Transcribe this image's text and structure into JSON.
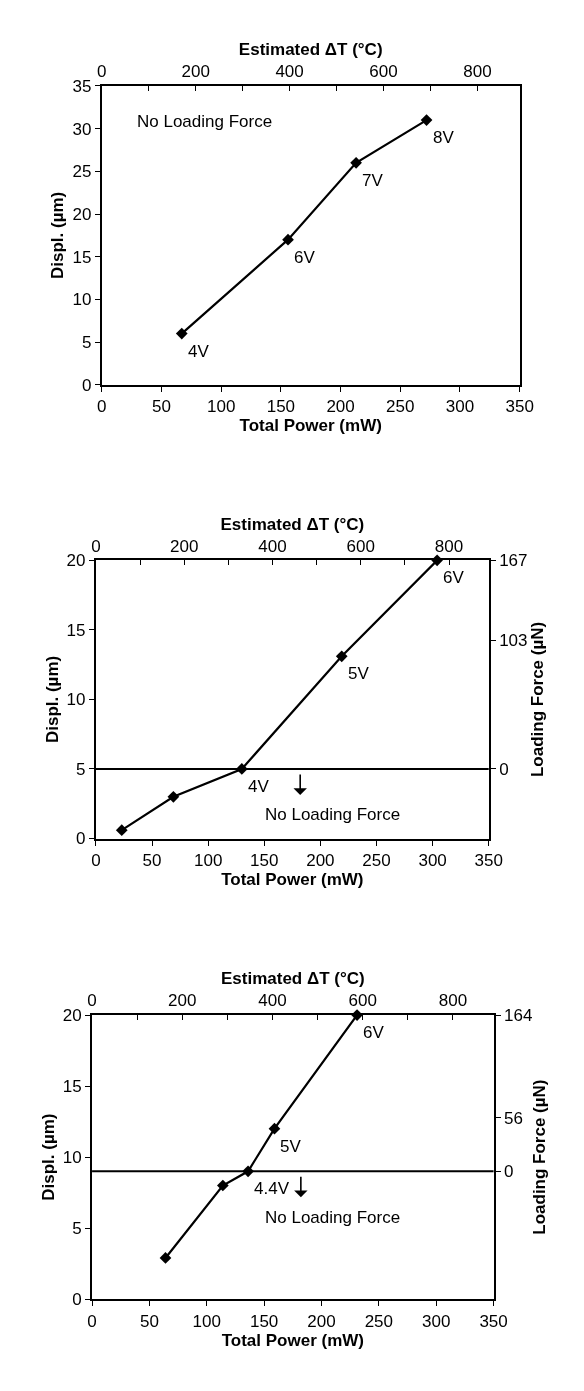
{
  "chart_data": [
    {
      "type": "line",
      "xlabel": "Total Power (mW)",
      "x2label": "Estimated ΔT (°C)",
      "ylabel": "Displ. (µm)",
      "x": [
        67,
        156,
        213,
        272
      ],
      "series": [
        {
          "color": "#000000",
          "values": [
            6,
            17,
            26,
            31
          ]
        }
      ],
      "marker": "diamond",
      "line_style": "solid",
      "xlim": [
        0,
        350
      ],
      "xticks": [
        0,
        50,
        100,
        150,
        200,
        250,
        300,
        350
      ],
      "x2lim": [
        0,
        890
      ],
      "x2ticks": [
        0,
        {
          "value": 100,
          "label": null
        },
        200,
        {
          "value": 300,
          "label": null
        },
        400,
        {
          "value": 500,
          "label": null
        },
        600,
        {
          "value": 700,
          "label": null
        },
        800
      ],
      "ylim": [
        0,
        35
      ],
      "yticks": [
        0,
        5,
        10,
        15,
        20,
        25,
        30,
        35
      ],
      "annotations": [
        "No Loading Force",
        {
          "text": "4V",
          "x": 67,
          "y": 6
        },
        {
          "text": "6V",
          "x": 156,
          "y": 17
        },
        {
          "text": "7V",
          "x": 213,
          "y": 26
        },
        {
          "text": "8V",
          "x": 272,
          "y": 31
        }
      ]
    },
    {
      "type": "line",
      "xlabel": "Total Power (mW)",
      "x2label": "Estimated ΔT (°C)",
      "ylabel": "Displ. (µm)",
      "y2label": "Loading Force (µN)",
      "x": [
        23,
        69,
        130,
        219,
        304
      ],
      "series": [
        {
          "color": "#000000",
          "values": [
            0.6,
            3,
            5,
            13.1,
            20
          ]
        }
      ],
      "marker": "diamond",
      "line_style": "solid",
      "xlim": [
        0,
        350
      ],
      "xticks": [
        0,
        50,
        100,
        150,
        200,
        250,
        300,
        350
      ],
      "x2lim": [
        0,
        890
      ],
      "x2ticks": [
        0,
        {
          "value": 100,
          "label": null
        },
        200,
        {
          "value": 300,
          "label": null
        },
        400,
        {
          "value": 500,
          "label": null
        },
        600,
        {
          "value": 700,
          "label": null
        },
        800
      ],
      "ylim": [
        0,
        20
      ],
      "yticks": [
        0,
        5,
        10,
        15,
        20
      ],
      "y2lim": [
        -55.7,
        167
      ],
      "y2ticks": [
        0,
        103,
        167
      ],
      "ref_lines": [
        {
          "axis": "y",
          "value": 5,
          "label": "No Loading Force",
          "color": "#000000"
        }
      ],
      "annotations": [
        {
          "text": "4V",
          "x": 130,
          "y": 5
        },
        {
          "text": "5V",
          "x": 219,
          "y": 13.1
        },
        {
          "text": "6V",
          "x": 304,
          "y": 20
        }
      ]
    },
    {
      "type": "line",
      "xlabel": "Total Power (mW)",
      "x2label": "Estimated ΔT (°C)",
      "ylabel": "Displ. (µm)",
      "y2label": "Loading Force (µN)",
      "x": [
        64,
        114,
        136,
        159,
        231
      ],
      "series": [
        {
          "color": "#000000",
          "values": [
            2.9,
            8,
            9,
            12,
            20
          ]
        }
      ],
      "marker": "diamond",
      "line_style": "solid",
      "xlim": [
        0,
        350
      ],
      "xticks": [
        0,
        50,
        100,
        150,
        200,
        250,
        300,
        350
      ],
      "x2lim": [
        0,
        890
      ],
      "x2ticks": [
        0,
        {
          "value": 100,
          "label": null
        },
        200,
        {
          "value": 300,
          "label": null
        },
        400,
        {
          "value": 500,
          "label": null
        },
        600,
        {
          "value": 700,
          "label": null
        },
        800
      ],
      "ylim": [
        0,
        20
      ],
      "yticks": [
        0,
        5,
        10,
        15,
        20
      ],
      "y2lim": [
        -134.2,
        164
      ],
      "y2ticks": [
        0,
        56,
        164
      ],
      "ref_lines": [
        {
          "axis": "y",
          "value": 9,
          "label": "No Loading Force",
          "color": "#000000"
        }
      ],
      "annotations": [
        {
          "text": "4.4V",
          "x": 136,
          "y": 9
        },
        {
          "text": "5V",
          "x": 159,
          "y": 12
        },
        {
          "text": "6V",
          "x": 231,
          "y": 20
        }
      ]
    }
  ]
}
